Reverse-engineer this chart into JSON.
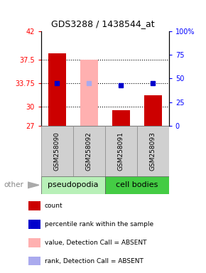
{
  "title": "GDS3288 / 1438544_at",
  "samples": [
    "GSM258090",
    "GSM258092",
    "GSM258091",
    "GSM258093"
  ],
  "ylim_left": [
    27,
    42
  ],
  "yticks_left": [
    27,
    30,
    33.75,
    37.5,
    42
  ],
  "yticks_right": [
    0,
    25,
    50,
    75,
    100
  ],
  "ytick_labels_left": [
    "27",
    "30",
    "33.75",
    "37.5",
    "42"
  ],
  "ytick_labels_right": [
    "0",
    "25",
    "50",
    "75",
    "100%"
  ],
  "hlines": [
    30,
    33.75,
    37.5
  ],
  "bar_values": [
    38.5,
    null,
    29.5,
    31.8
  ],
  "bar_color": "#cc0000",
  "absent_bar_values": [
    null,
    37.5,
    null,
    null
  ],
  "absent_bar_color": "#ffb0b0",
  "dot_values": [
    33.75,
    33.75,
    33.4,
    33.75
  ],
  "dot_absent": [
    false,
    true,
    false,
    false
  ],
  "dot_color_present": "#0000cc",
  "dot_color_absent": "#aaaaee",
  "bar_bottom": 27,
  "pseudopodia_color": "#b8f0b8",
  "cell_bodies_color": "#44cc44",
  "groups_info": [
    {
      "label": "pseudopodia",
      "start": 0,
      "end": 1,
      "color": "#b8f0b8"
    },
    {
      "label": "cell bodies",
      "start": 2,
      "end": 3,
      "color": "#44cc44"
    }
  ],
  "legend_items": [
    {
      "color": "#cc0000",
      "label": "count"
    },
    {
      "color": "#0000cc",
      "label": "percentile rank within the sample"
    },
    {
      "color": "#ffb0b0",
      "label": "value, Detection Call = ABSENT"
    },
    {
      "color": "#aaaaee",
      "label": "rank, Detection Call = ABSENT"
    }
  ],
  "other_label": "other",
  "bar_width": 0.55,
  "title_fontsize": 9,
  "tick_fontsize": 7,
  "sample_fontsize": 6.5,
  "group_fontsize": 8,
  "legend_fontsize": 6.5
}
